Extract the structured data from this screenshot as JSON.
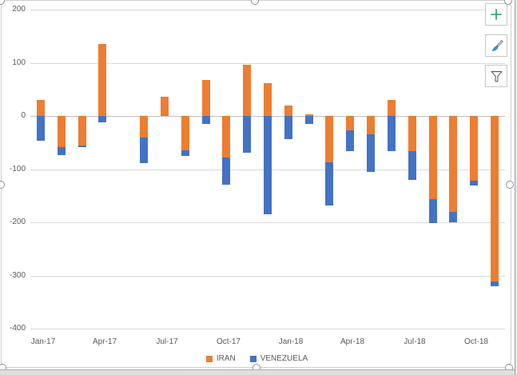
{
  "chart_data": {
    "type": "bar",
    "stacked": true,
    "title": "",
    "categories": [
      "Jan-17",
      "Feb-17",
      "Mar-17",
      "Apr-17",
      "May-17",
      "Jun-17",
      "Jul-17",
      "Aug-17",
      "Sep-17",
      "Oct-17",
      "Nov-17",
      "Dec-17",
      "Jan-18",
      "Feb-18",
      "Mar-18",
      "Apr-18",
      "May-18",
      "Jun-18",
      "Jul-18",
      "Aug-18",
      "Sep-18",
      "Oct-18",
      "Nov-18"
    ],
    "series": [
      {
        "name": "IRAN",
        "color": "#ED7D31",
        "values": [
          30,
          -59,
          -55,
          135,
          0,
          -41,
          36,
          -65,
          68,
          -78,
          96,
          62,
          20,
          3,
          -87,
          -27,
          -34,
          30,
          -66,
          -157,
          -180,
          -121,
          -311
        ]
      },
      {
        "name": "VENEZUELA",
        "color": "#4472C4",
        "values": [
          -46,
          -15,
          -3,
          -12,
          0,
          -48,
          0,
          -11,
          -15,
          -51,
          -69,
          -185,
          -44,
          -15,
          -82,
          -39,
          -72,
          -66,
          -55,
          -44,
          -20,
          -9,
          -10
        ]
      }
    ],
    "ylim": [
      -400,
      200
    ],
    "y_ticks": [
      "200",
      "100",
      "0",
      "-100",
      "-200",
      "-300",
      "-400"
    ],
    "x_tick_labels": [
      "Jan-17",
      "Apr-17",
      "Jul-17",
      "Oct-17",
      "Jan-18",
      "Apr-18",
      "Jul-18",
      "Oct-18"
    ],
    "x_tick_every": 3,
    "grid": true,
    "legend_position": "bottom"
  },
  "chart_buttons": [
    {
      "id": "chart-elements-button",
      "icon": "plus-icon",
      "color": "#21A366"
    },
    {
      "id": "chart-styles-button",
      "icon": "paintbrush-icon",
      "color": "#2E9BE6"
    },
    {
      "id": "chart-filters-button",
      "icon": "funnel-icon",
      "color": "#555555"
    }
  ],
  "colors": {
    "iran": "#ED7D31",
    "venezuela": "#4472C4",
    "gridline": "#D9D9D9",
    "axis_text": "#595959",
    "chart_border": "#D0CECE",
    "handle_ring": "#929292"
  }
}
